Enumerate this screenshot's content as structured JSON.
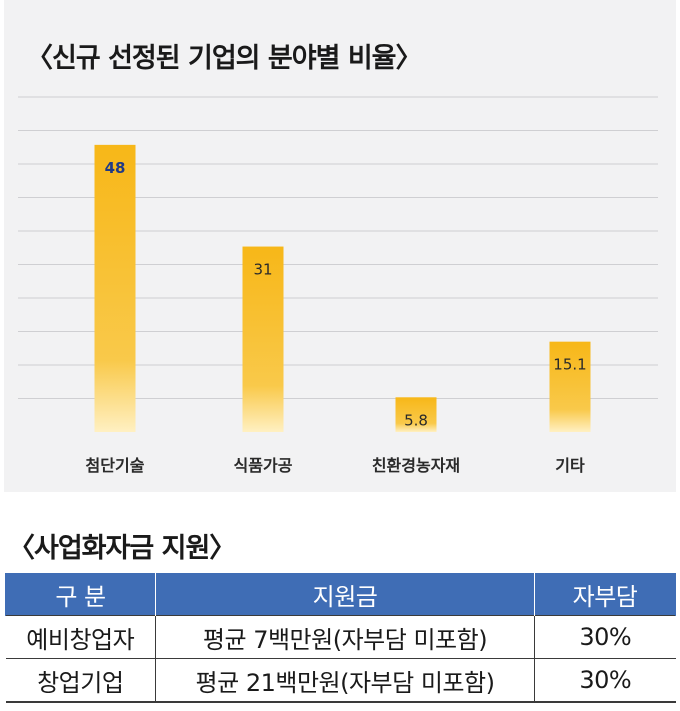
{
  "chart_section": {
    "title": "〈신규 선정된 기업의 분야별 비율〉"
  },
  "chart_data": {
    "type": "bar",
    "title": "〈신규 선정된 기업의 분야별 비율〉",
    "categories": [
      "첨단기술",
      "식품가공",
      "친환경농자재",
      "기타"
    ],
    "values": [
      48,
      31,
      5.8,
      15.1
    ],
    "data_labels": [
      "48",
      "31",
      "5.8",
      "15.1"
    ],
    "ylim": [
      0,
      56
    ],
    "grid": true,
    "legend": "none",
    "colors": {
      "bar_top": "#f7b718",
      "bar_bottom": "#fff0c2",
      "highlight_label": "#1f3a86",
      "label": "#2a2a2a",
      "grid": "#cfcfd2"
    }
  },
  "table_section": {
    "title": "〈사업화자금 지원〉",
    "headers": [
      "구 분",
      "지원금",
      "자부담"
    ],
    "rows": [
      [
        "예비창업자",
        "평균 7백만원(자부담 미포함)",
        "30%"
      ],
      [
        "창업기업",
        "평균 21백만원(자부담 미포함)",
        "30%"
      ]
    ],
    "header_color": "#3f6db5"
  }
}
